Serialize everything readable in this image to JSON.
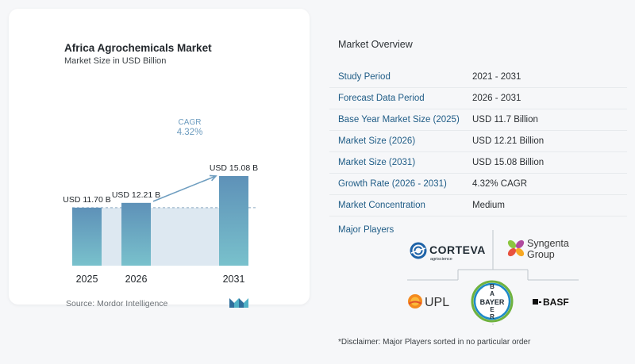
{
  "chart": {
    "title": "Africa Agrochemicals Market",
    "subtitle": "Market Size in USD Billion",
    "source": "Source:  Mordor Intelligence",
    "cagr_label": "CAGR",
    "cagr_value": "4.32%",
    "colors": {
      "bar_top": "#5e91b8",
      "bar_bottom": "#79c1cc",
      "band": "#dde8f1",
      "arrow": "#6f9ec0",
      "cagr_text": "#6d9cbf"
    }
  },
  "chart_data": {
    "type": "bar",
    "categories": [
      "2025",
      "2026",
      "2031"
    ],
    "values": [
      11.7,
      12.21,
      15.08
    ],
    "data_labels": [
      "USD 11.70 B",
      "USD 12.21 B",
      "USD 15.08 B"
    ],
    "title": "Africa Agrochemicals Market",
    "ylabel": "Market Size in USD Billion",
    "grid": false
  },
  "overview": {
    "title": "Market Overview",
    "rows": [
      {
        "label": "Study Period",
        "value": "2021 - 2031"
      },
      {
        "label": "Forecast Data Period",
        "value": "2026 - 2031"
      },
      {
        "label": "Base Year Market Size (2025)",
        "value": "USD 11.7 Billion"
      },
      {
        "label": "Market Size (2026)",
        "value": "USD 12.21 Billion"
      },
      {
        "label": "Market Size (2031)",
        "value": "USD 15.08 Billion"
      },
      {
        "label": "Growth Rate (2026 - 2031)",
        "value": "4.32% CAGR"
      },
      {
        "label": "Market Concentration",
        "value": "Medium"
      }
    ]
  },
  "players": {
    "title": "Major Players",
    "corteva": {
      "name": "CORTEVA",
      "sub": "agriscience",
      "icon": "corteva-swirl-icon"
    },
    "syngenta": {
      "line1": "Syngenta",
      "line2": "Group",
      "icon": "syngenta-flower-icon"
    },
    "upl": {
      "name": "UPL",
      "icon": "upl-sun-icon"
    },
    "bayer": {
      "name": "BAYER",
      "icon": "bayer-cross-icon"
    },
    "basf": {
      "name": "BASF",
      "icon": "basf-square-icon"
    }
  },
  "disclaimer": "*Disclaimer: Major Players sorted in no particular order"
}
